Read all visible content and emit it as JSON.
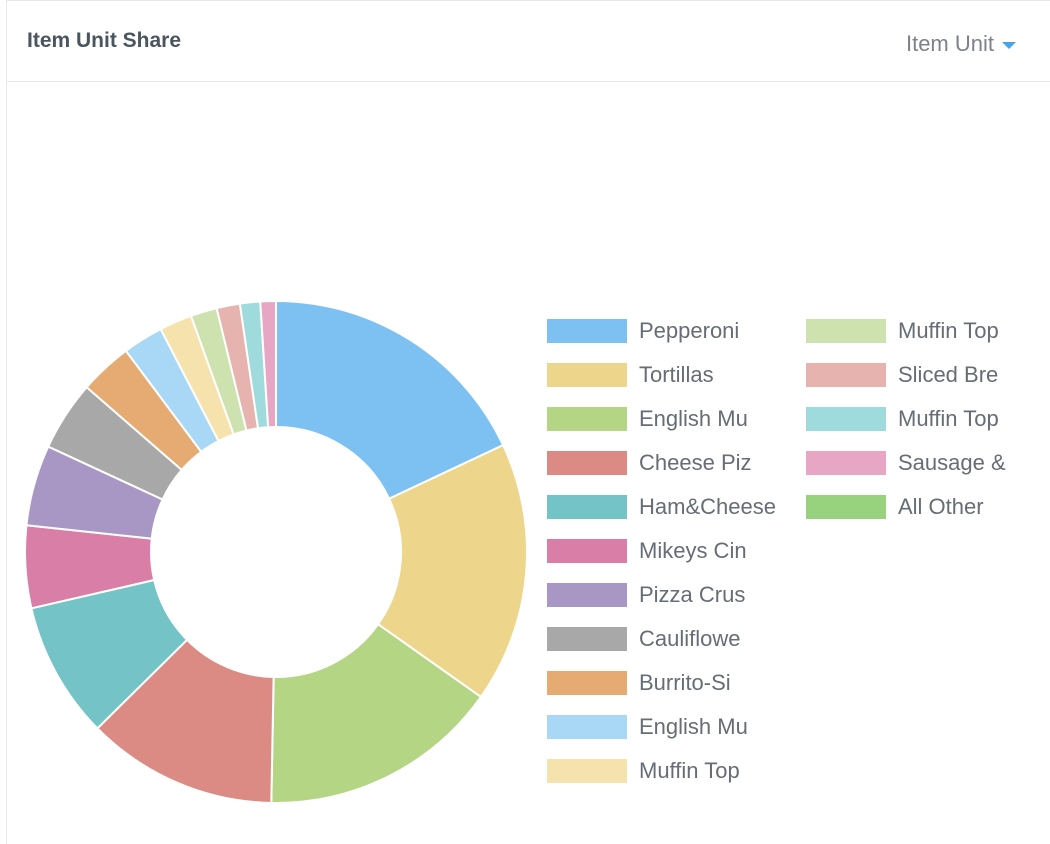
{
  "header": {
    "title": "Item Unit Share",
    "unit_select_label": "Item Unit"
  },
  "chart_data": {
    "type": "pie",
    "donut": true,
    "title": "Item Unit Share",
    "legend_position": "right",
    "slices": [
      {
        "label": "Pepperoni",
        "value": 18.0,
        "color": "#7dc1f2"
      },
      {
        "label": "Tortillas",
        "value": 16.8,
        "color": "#eed58c"
      },
      {
        "label": "English Mu",
        "value": 15.5,
        "color": "#b4d583"
      },
      {
        "label": "Cheese Piz",
        "value": 12.3,
        "color": "#dc8b84"
      },
      {
        "label": "Ham&Cheese",
        "value": 8.8,
        "color": "#74c3c6"
      },
      {
        "label": "Mikeys Cin",
        "value": 5.3,
        "color": "#d97ea6"
      },
      {
        "label": "Pizza Crus",
        "value": 5.2,
        "color": "#a897c5"
      },
      {
        "label": "Cauliflowe",
        "value": 4.5,
        "color": "#a8a8a8"
      },
      {
        "label": "Burrito-Si",
        "value": 3.4,
        "color": "#e5ab72"
      },
      {
        "label": "English Mu",
        "value": 2.6,
        "color": "#a9d8f7"
      },
      {
        "label": "Muffin Top",
        "value": 2.1,
        "color": "#f6e2ad"
      },
      {
        "label": "Muffin Top",
        "value": 1.7,
        "color": "#cde2ae"
      },
      {
        "label": "Sliced Bre",
        "value": 1.5,
        "color": "#e7b3ae"
      },
      {
        "label": "Muffin Top",
        "value": 1.3,
        "color": "#9fdadc"
      },
      {
        "label": "Sausage &",
        "value": 1.0,
        "color": "#e7a6c4"
      },
      {
        "label": "All Other",
        "value": 0.0,
        "color": "#98d27f"
      }
    ]
  }
}
